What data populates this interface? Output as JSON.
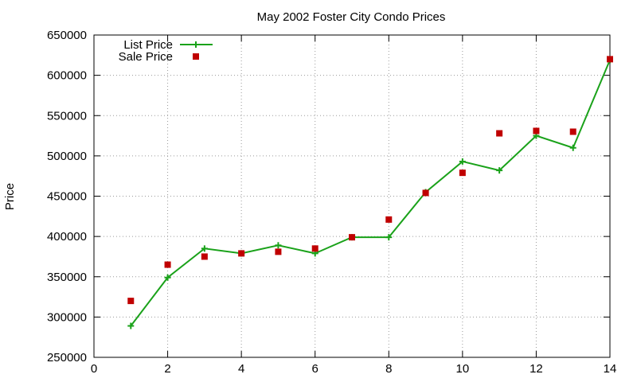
{
  "chart_data": {
    "type": "line",
    "title": "May 2002 Foster City Condo Prices",
    "xlabel": "",
    "ylabel": "Price",
    "xlim": [
      0,
      14
    ],
    "ylim": [
      250000,
      650000
    ],
    "xticks": [
      0,
      2,
      4,
      6,
      8,
      10,
      12,
      14
    ],
    "yticks": [
      250000,
      300000,
      350000,
      400000,
      450000,
      500000,
      550000,
      600000,
      650000
    ],
    "grid": true,
    "legend_position": "top-left",
    "series": [
      {
        "name": "List Price",
        "style": "linespoints",
        "marker": "plus",
        "color": "#1aa21a",
        "x": [
          1,
          2,
          3,
          4,
          5,
          6,
          7,
          8,
          9,
          10,
          11,
          12,
          13,
          14
        ],
        "y": [
          289000,
          349000,
          385000,
          379000,
          389000,
          379000,
          399000,
          399000,
          455000,
          493000,
          482000,
          525000,
          510000,
          619000
        ]
      },
      {
        "name": "Sale Price",
        "style": "points",
        "marker": "square",
        "color": "#c00000",
        "x": [
          1,
          2,
          3,
          4,
          5,
          6,
          7,
          8,
          9,
          10,
          11,
          12,
          13,
          14
        ],
        "y": [
          320000,
          365000,
          375000,
          379000,
          381000,
          385000,
          399000,
          421000,
          454000,
          479000,
          528000,
          531000,
          530000,
          620000
        ]
      }
    ]
  }
}
